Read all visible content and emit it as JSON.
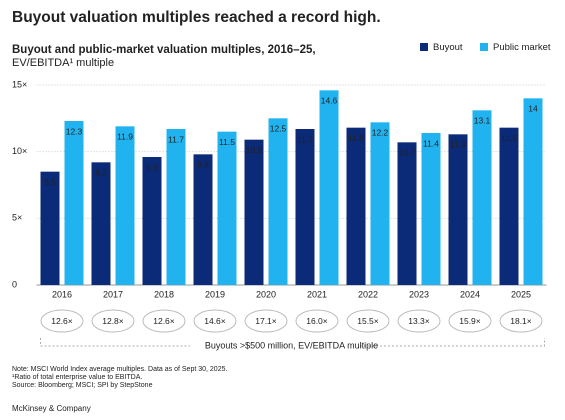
{
  "chart_data": {
    "type": "bar",
    "title": "Buyout valuation multiples reached a record high.",
    "subtitle": "Buyout and public-market valuation multiples, 2016–25,",
    "subtitle2": "EV/EBITDA¹ multiple",
    "categories": [
      "2016",
      "2017",
      "2018",
      "2019",
      "2020",
      "2021",
      "2022",
      "2023",
      "2024",
      "2025"
    ],
    "series": [
      {
        "name": "Buyout",
        "color": "#0b2a78",
        "values": [
          8.5,
          9.2,
          9.6,
          9.8,
          10.9,
          11.7,
          11.8,
          10.7,
          11.3,
          11.8
        ]
      },
      {
        "name": "Public market",
        "color": "#21b3ef",
        "values": [
          12.3,
          11.9,
          11.7,
          11.5,
          12.5,
          14.6,
          12.2,
          11.4,
          13.1,
          14.0
        ]
      }
    ],
    "ylim": [
      0,
      15
    ],
    "yticks": [
      0,
      {
        "value": 5,
        "label": "5×"
      },
      {
        "value": 10,
        "label": "10×"
      },
      {
        "value": 15,
        "label": "15×"
      }
    ],
    "grid": true,
    "legend": "top-right",
    "bubble_labels": [
      "12.6×",
      "12.8×",
      "12.6×",
      "14.6×",
      "17.1×",
      "16.0×",
      "15.5×",
      "13.3×",
      "15.9×",
      "18.1×"
    ],
    "bubble_caption": "Buyouts >$500 million, EV/EBITDA multiple"
  },
  "notes": [
    "Note: MSCI World Index average multiples. Data as of Sept 30, 2025.",
    "¹Ratio of total enterprise value to EBITDA.",
    "Source: Bloomberg; MSCI; SPI by StepStone"
  ],
  "footer": "McKinsey & Company"
}
